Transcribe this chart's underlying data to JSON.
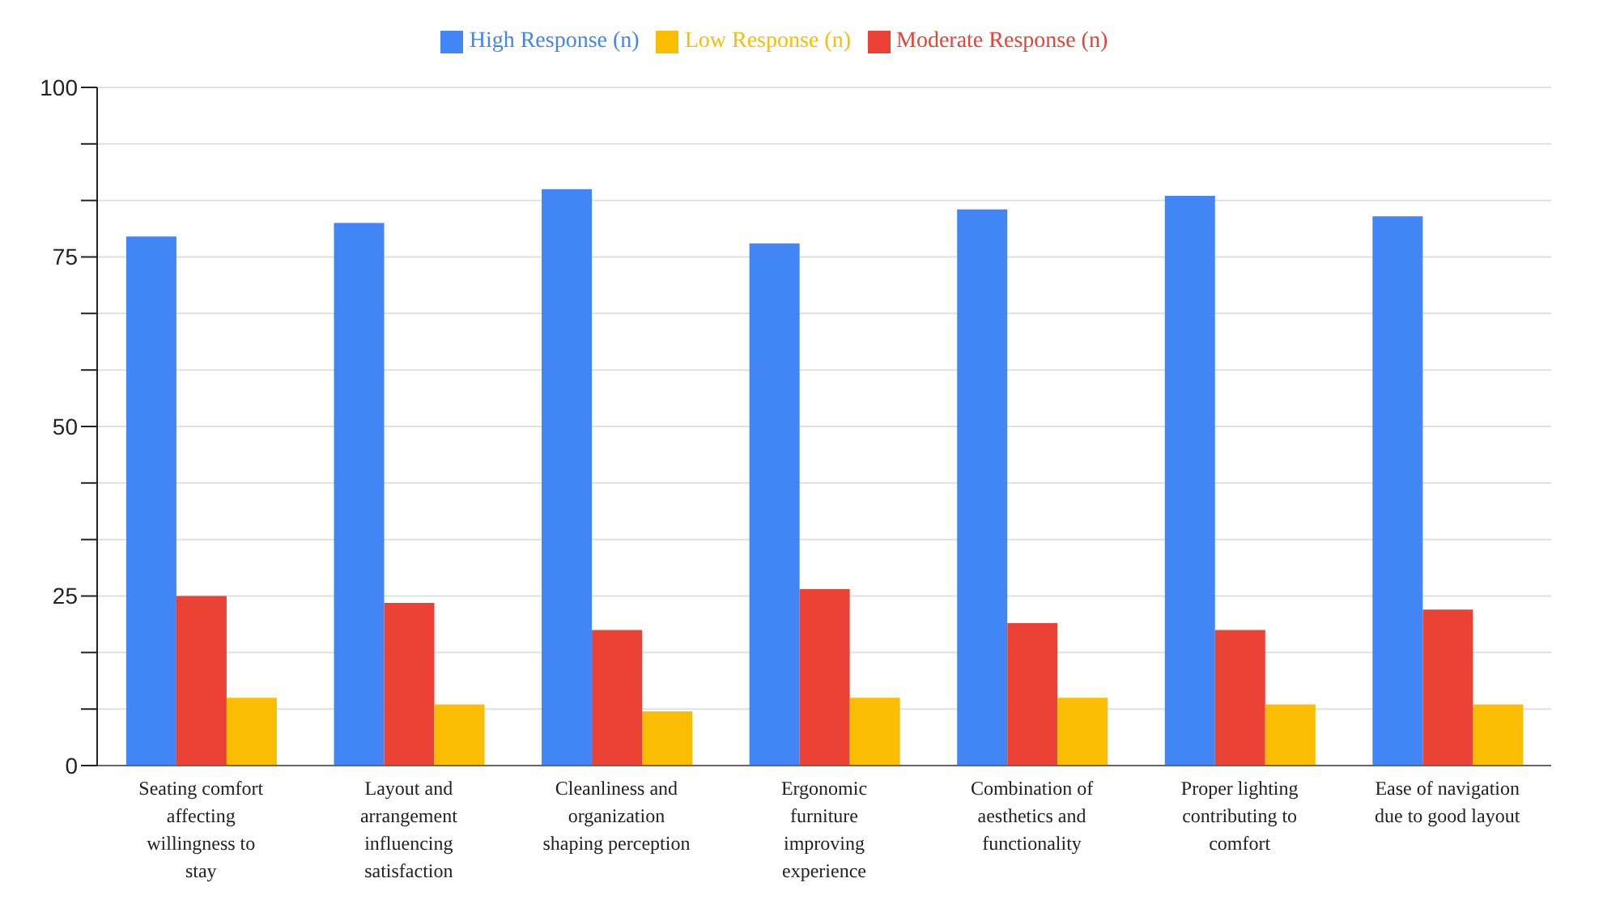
{
  "chart_data": {
    "type": "bar",
    "categories": [
      "Seating comfort affecting willingness to stay",
      "Layout and arrangement influencing satisfaction",
      "Cleanliness and organization shaping perception",
      "Ergonomic furniture improving experience",
      "Combination of aesthetics and functionality",
      "Proper lighting contributing to comfort",
      "Ease of navigation due to good layout"
    ],
    "series": [
      {
        "name": "High Response (n)",
        "color": "#4285f4",
        "values": [
          78,
          80,
          85,
          77,
          82,
          84,
          81
        ]
      },
      {
        "name": "Moderate Response (n)",
        "color": "#ea4335",
        "values": [
          25,
          24,
          20,
          26,
          21,
          20,
          23
        ]
      },
      {
        "name": "Low Response (n)",
        "color": "#fbbc04",
        "values": [
          10,
          9,
          8,
          10,
          10,
          9,
          9
        ]
      }
    ],
    "ylim": [
      0,
      100
    ],
    "yticks": [
      0,
      {
        "value": 8.33,
        "label": null
      },
      {
        "value": 16.67,
        "label": null
      },
      25,
      {
        "value": 33.33,
        "label": null
      },
      {
        "value": 41.67,
        "label": null
      },
      50,
      {
        "value": 58.33,
        "label": null
      },
      {
        "value": 66.67,
        "label": null
      },
      75,
      {
        "value": 83.33,
        "label": null
      },
      {
        "value": 91.67,
        "label": null
      },
      100
    ],
    "grid": "y",
    "legend": "top"
  }
}
